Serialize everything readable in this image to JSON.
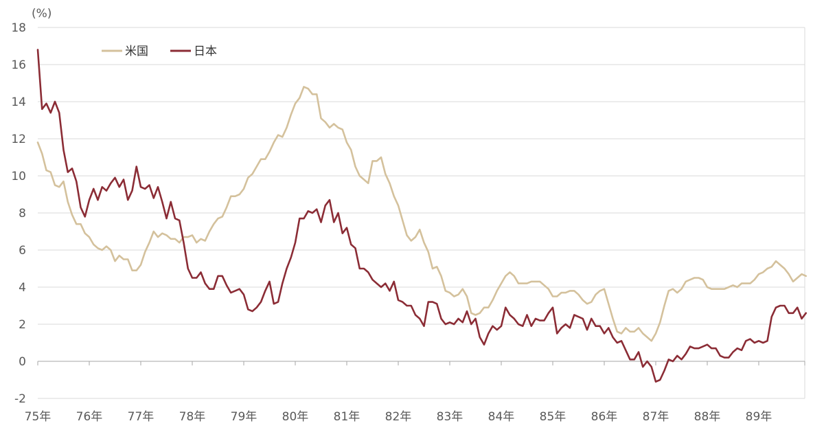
{
  "chart_data": {
    "type": "line",
    "y_unit_label": "(%)",
    "x_start": "1975-01",
    "x_frequency": "monthly",
    "x_tick_labels": [
      "75年",
      "76年",
      "77年",
      "78年",
      "79年",
      "80年",
      "81年",
      "82年",
      "83年",
      "84年",
      "85年",
      "86年",
      "87年",
      "88年",
      "89年"
    ],
    "ylim": [
      -2,
      18
    ],
    "y_ticks": [
      "-2",
      "0",
      "2",
      "4",
      "6",
      "8",
      "10",
      "12",
      "14",
      "16",
      "18"
    ],
    "grid": true,
    "legend_position": "top-left",
    "series": [
      {
        "name": "米国",
        "color": "#d4c19c",
        "values": [
          11.8,
          11.2,
          10.3,
          10.2,
          9.5,
          9.4,
          9.7,
          8.6,
          7.9,
          7.4,
          7.4,
          6.9,
          6.7,
          6.3,
          6.1,
          6.0,
          6.2,
          6.0,
          5.4,
          5.7,
          5.5,
          5.5,
          4.9,
          4.9,
          5.2,
          5.9,
          6.4,
          7.0,
          6.7,
          6.9,
          6.8,
          6.6,
          6.6,
          6.4,
          6.7,
          6.7,
          6.8,
          6.4,
          6.6,
          6.5,
          7.0,
          7.4,
          7.7,
          7.8,
          8.3,
          8.9,
          8.9,
          9.0,
          9.3,
          9.9,
          10.1,
          10.5,
          10.9,
          10.9,
          11.3,
          11.8,
          12.2,
          12.1,
          12.6,
          13.3,
          13.9,
          14.2,
          14.8,
          14.7,
          14.4,
          14.4,
          13.1,
          12.9,
          12.6,
          12.8,
          12.6,
          12.5,
          11.8,
          11.4,
          10.5,
          10.0,
          9.8,
          9.6,
          10.8,
          10.8,
          11.0,
          10.1,
          9.6,
          8.9,
          8.4,
          7.6,
          6.8,
          6.5,
          6.7,
          7.1,
          6.4,
          5.9,
          5.0,
          5.1,
          4.6,
          3.8,
          3.7,
          3.5,
          3.6,
          3.9,
          3.5,
          2.6,
          2.5,
          2.6,
          2.9,
          2.9,
          3.3,
          3.8,
          4.2,
          4.6,
          4.8,
          4.6,
          4.2,
          4.2,
          4.2,
          4.3,
          4.3,
          4.3,
          4.1,
          3.9,
          3.5,
          3.5,
          3.7,
          3.7,
          3.8,
          3.8,
          3.6,
          3.3,
          3.1,
          3.2,
          3.6,
          3.8,
          3.9,
          3.1,
          2.3,
          1.6,
          1.5,
          1.8,
          1.6,
          1.6,
          1.8,
          1.5,
          1.3,
          1.1,
          1.5,
          2.1,
          3.0,
          3.8,
          3.9,
          3.7,
          3.9,
          4.3,
          4.4,
          4.5,
          4.5,
          4.4,
          4.0,
          3.9,
          3.9,
          3.9,
          3.9,
          4.0,
          4.1,
          4.0,
          4.2,
          4.2,
          4.2,
          4.4,
          4.7,
          4.8,
          5.0,
          5.1,
          5.4,
          5.2,
          5.0,
          4.7,
          4.3,
          4.5,
          4.7,
          4.6
        ]
      },
      {
        "name": "日本",
        "color": "#8b2c35",
        "values": [
          16.8,
          13.6,
          13.9,
          13.4,
          14.0,
          13.4,
          11.4,
          10.2,
          10.4,
          9.7,
          8.3,
          7.8,
          8.7,
          9.3,
          8.7,
          9.4,
          9.2,
          9.6,
          9.9,
          9.4,
          9.8,
          8.7,
          9.2,
          10.5,
          9.4,
          9.3,
          9.5,
          8.8,
          9.4,
          8.6,
          7.7,
          8.6,
          7.7,
          7.6,
          6.4,
          5.0,
          4.5,
          4.5,
          4.8,
          4.2,
          3.9,
          3.9,
          4.6,
          4.6,
          4.1,
          3.7,
          3.8,
          3.9,
          3.6,
          2.8,
          2.7,
          2.9,
          3.2,
          3.8,
          4.3,
          3.1,
          3.2,
          4.2,
          5.0,
          5.6,
          6.4,
          7.7,
          7.7,
          8.1,
          8.0,
          8.2,
          7.5,
          8.4,
          8.7,
          7.5,
          8.0,
          6.9,
          7.2,
          6.3,
          6.1,
          5.0,
          5.0,
          4.8,
          4.4,
          4.2,
          4.0,
          4.2,
          3.8,
          4.3,
          3.3,
          3.2,
          3.0,
          3.0,
          2.5,
          2.3,
          1.9,
          3.2,
          3.2,
          3.1,
          2.3,
          2.0,
          2.1,
          2.0,
          2.3,
          2.1,
          2.7,
          2.0,
          2.3,
          1.3,
          0.9,
          1.5,
          1.9,
          1.7,
          1.9,
          2.9,
          2.5,
          2.3,
          2.0,
          1.9,
          2.5,
          1.9,
          2.3,
          2.2,
          2.2,
          2.6,
          2.9,
          1.5,
          1.8,
          2.0,
          1.8,
          2.5,
          2.4,
          2.3,
          1.7,
          2.3,
          1.9,
          1.9,
          1.5,
          1.8,
          1.3,
          1.0,
          1.1,
          0.6,
          0.1,
          0.1,
          0.5,
          -0.3,
          0.0,
          -0.3,
          -1.1,
          -1.0,
          -0.5,
          0.1,
          0.0,
          0.3,
          0.1,
          0.4,
          0.8,
          0.7,
          0.7,
          0.8,
          0.9,
          0.7,
          0.7,
          0.3,
          0.2,
          0.2,
          0.5,
          0.7,
          0.6,
          1.1,
          1.2,
          1.0,
          1.1,
          1.0,
          1.1,
          2.4,
          2.9,
          3.0,
          3.0,
          2.6,
          2.6,
          2.9,
          2.3,
          2.6
        ]
      }
    ]
  }
}
